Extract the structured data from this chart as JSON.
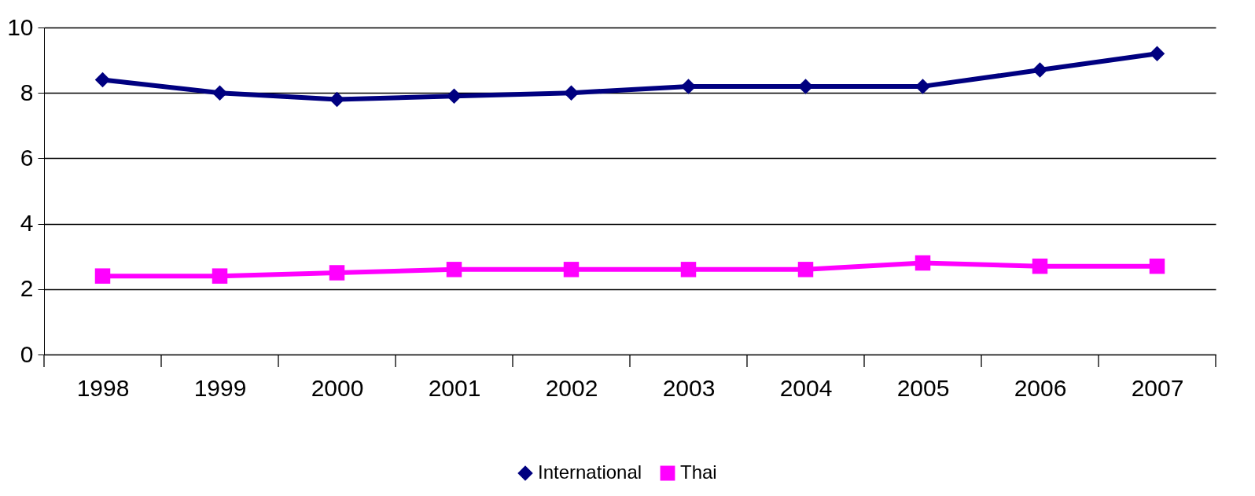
{
  "chart_data": {
    "type": "line",
    "categories": [
      "1998",
      "1999",
      "2000",
      "2001",
      "2002",
      "2003",
      "2004",
      "2005",
      "2006",
      "2007"
    ],
    "series": [
      {
        "name": "International",
        "color": "#000080",
        "marker": "diamond",
        "values": [
          8.4,
          8.0,
          7.8,
          7.9,
          8.0,
          8.2,
          8.2,
          8.2,
          8.7,
          9.2
        ]
      },
      {
        "name": "Thai",
        "color": "#ff00ff",
        "marker": "square",
        "values": [
          2.4,
          2.4,
          2.5,
          2.6,
          2.6,
          2.6,
          2.6,
          2.8,
          2.7,
          2.7
        ]
      }
    ],
    "ylim": [
      0,
      10
    ],
    "yticks": [
      0,
      2,
      4,
      6,
      8,
      10
    ],
    "grid": "y",
    "legend": "bottom",
    "line_style": "solid"
  }
}
